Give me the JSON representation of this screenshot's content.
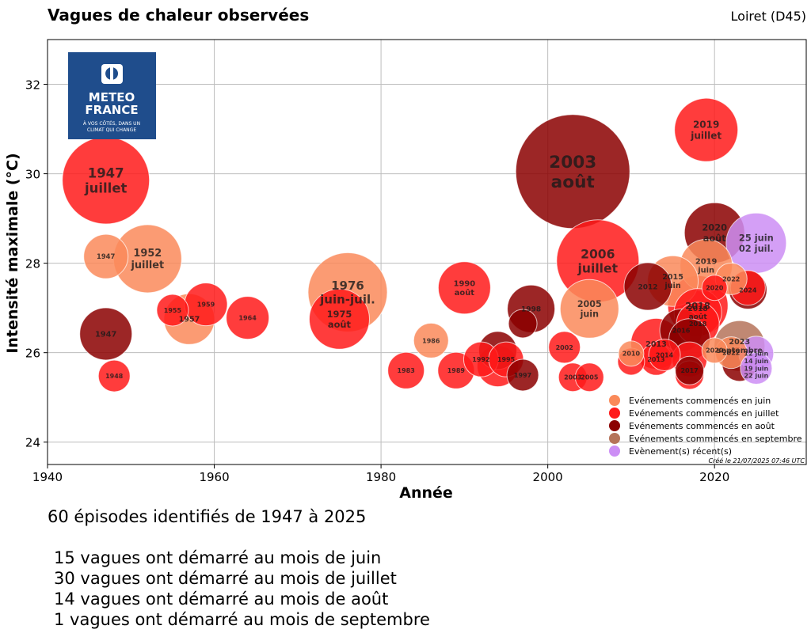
{
  "chart_data": {
    "type": "scatter",
    "title": "Vagues de chaleur observées",
    "subtitle": "Loiret (D45)",
    "xlabel": "Année",
    "ylabel": "Intensité maximale (°C)",
    "xlim": [
      1940,
      2031
    ],
    "ylim": [
      23.5,
      33
    ],
    "xticks": [
      "1940",
      "1960",
      "1980",
      "2000",
      "2020"
    ],
    "yticks": [
      "24",
      "26",
      "28",
      "30",
      "32"
    ],
    "grid": true,
    "legend_position": "bottom-right",
    "credit": "Créé le 21/07/2025 07:46 UTC",
    "logo": {
      "line1": "METEO",
      "line2": "FRANCE",
      "tagline1": "À VOS CÔTÉS, DANS UN",
      "tagline2": "CLIMAT QUI CHANGE"
    },
    "legend": [
      {
        "label": "Evénements commencés en juin",
        "color": "#fa8a5a"
      },
      {
        "label": "Evénements commencés en juillet",
        "color": "#ff1a1a"
      },
      {
        "label": "Evénements commencés en août",
        "color": "#8b0000"
      },
      {
        "label": "Evénements commencés en septembre",
        "color": "#b5735a"
      },
      {
        "label": "Evènement(s) récent(s)",
        "color": "#cc8ef5"
      }
    ],
    "events": [
      {
        "year": 1947,
        "value": 29.85,
        "size": 55,
        "month": "juillet",
        "label": [
          "1947",
          "juillet"
        ]
      },
      {
        "year": 1947,
        "value": 28.15,
        "size": 28,
        "month": "juin",
        "label": [
          "1947"
        ]
      },
      {
        "year": 1952,
        "value": 28.1,
        "size": 43,
        "month": "juin",
        "label": [
          "1952",
          "juillet"
        ]
      },
      {
        "year": 1947,
        "value": 26.42,
        "size": 33,
        "month": "août",
        "label": [
          "1947"
        ]
      },
      {
        "year": 1948,
        "value": 25.48,
        "size": 20,
        "month": "juillet",
        "label": [
          "1948"
        ]
      },
      {
        "year": 1955,
        "value": 26.95,
        "size": 20,
        "month": "juillet",
        "label": [
          "1955"
        ]
      },
      {
        "year": 1957,
        "value": 26.75,
        "size": 32,
        "month": "juin",
        "label": [
          "1957"
        ]
      },
      {
        "year": 1959,
        "value": 27.08,
        "size": 27,
        "month": "juillet",
        "label": [
          "1959"
        ]
      },
      {
        "year": 1964,
        "value": 26.78,
        "size": 27,
        "month": "juillet",
        "label": [
          "1964"
        ]
      },
      {
        "year": 1975,
        "value": 26.75,
        "size": 38,
        "month": "juillet",
        "label": [
          "1975",
          "août"
        ]
      },
      {
        "year": 1976,
        "value": 27.35,
        "size": 50,
        "month": "juin",
        "label": [
          "1976",
          "juin-juil."
        ]
      },
      {
        "year": 1983,
        "value": 25.6,
        "size": 23,
        "month": "juillet",
        "label": [
          "1983"
        ]
      },
      {
        "year": 1986,
        "value": 26.27,
        "size": 22,
        "month": "juin",
        "label": [
          "1986"
        ]
      },
      {
        "year": 1989,
        "value": 25.6,
        "size": 23,
        "month": "juillet",
        "label": [
          "1989"
        ]
      },
      {
        "year": 1990,
        "value": 27.45,
        "size": 33,
        "month": "juillet",
        "label": [
          "1990",
          "août"
        ]
      },
      {
        "year": 1992,
        "value": 25.85,
        "size": 22,
        "month": "juillet",
        "label": [
          "1992"
        ]
      },
      {
        "year": 1994,
        "value": 26.05,
        "size": 24,
        "month": "août",
        "label": [
          ""
        ]
      },
      {
        "year": 1994,
        "value": 25.7,
        "size": 26,
        "month": "juillet",
        "label": [
          ""
        ]
      },
      {
        "year": 1995,
        "value": 25.85,
        "size": 22,
        "month": "juillet",
        "label": [
          "1995"
        ]
      },
      {
        "year": 1997,
        "value": 25.5,
        "size": 20,
        "month": "août",
        "label": [
          "1997"
        ]
      },
      {
        "year": 1997,
        "value": 26.65,
        "size": 18,
        "month": "août",
        "label": [
          ""
        ]
      },
      {
        "year": 1998,
        "value": 26.98,
        "size": 30,
        "month": "août",
        "label": [
          "1998"
        ]
      },
      {
        "year": 2002,
        "value": 26.12,
        "size": 20,
        "month": "juillet",
        "label": [
          "2002"
        ]
      },
      {
        "year": 2003,
        "value": 30.05,
        "size": 72,
        "month": "août",
        "label": [
          "2003",
          "août"
        ]
      },
      {
        "year": 2003,
        "value": 25.45,
        "size": 18,
        "month": "juillet",
        "label": [
          "2003"
        ]
      },
      {
        "year": 2005,
        "value": 25.45,
        "size": 18,
        "month": "juillet",
        "label": [
          "2005"
        ]
      },
      {
        "year": 2005,
        "value": 26.98,
        "size": 37,
        "month": "juin",
        "label": [
          "2005",
          "juin"
        ]
      },
      {
        "year": 2006,
        "value": 28.05,
        "size": 52,
        "month": "juillet",
        "label": [
          "2006",
          "juillet"
        ]
      },
      {
        "year": 2010,
        "value": 25.8,
        "size": 17,
        "month": "juillet",
        "label": [
          ""
        ]
      },
      {
        "year": 2010,
        "value": 25.98,
        "size": 16,
        "month": "juin",
        "label": [
          "2010"
        ]
      },
      {
        "year": 2012,
        "value": 27.48,
        "size": 30,
        "month": "août",
        "label": [
          "2012"
        ]
      },
      {
        "year": 2013,
        "value": 26.2,
        "size": 32,
        "month": "juillet",
        "label": [
          "2013"
        ]
      },
      {
        "year": 2013,
        "value": 25.85,
        "size": 20,
        "month": "juillet",
        "label": [
          "2013"
        ]
      },
      {
        "year": 2014,
        "value": 25.95,
        "size": 20,
        "month": "juillet",
        "label": [
          "2014"
        ]
      },
      {
        "year": 2015,
        "value": 27.6,
        "size": 32,
        "month": "juin",
        "label": [
          "2015",
          "juin"
        ]
      },
      {
        "year": 2016,
        "value": 26.5,
        "size": 27,
        "month": "août",
        "label": [
          "2016"
        ]
      },
      {
        "year": 2017,
        "value": 26.3,
        "size": 26,
        "month": "août",
        "label": [
          ""
        ]
      },
      {
        "year": 2017,
        "value": 25.85,
        "size": 22,
        "month": "juillet",
        "label": [
          ""
        ]
      },
      {
        "year": 2017,
        "value": 25.5,
        "size": 18,
        "month": "juillet",
        "label": [
          ""
        ]
      },
      {
        "year": 2017,
        "value": 25.6,
        "size": 18,
        "month": "août",
        "label": [
          "2017"
        ]
      },
      {
        "year": 2018,
        "value": 27.05,
        "size": 38,
        "month": "juillet",
        "label": [
          "2018"
        ]
      },
      {
        "year": 2018,
        "value": 26.9,
        "size": 30,
        "month": "juillet",
        "label": [
          "2018",
          "août"
        ]
      },
      {
        "year": 2018,
        "value": 26.65,
        "size": 27,
        "month": "juillet",
        "label": [
          "2018"
        ]
      },
      {
        "year": 2019,
        "value": 27.95,
        "size": 33,
        "month": "juin",
        "label": [
          "2019",
          "juin"
        ]
      },
      {
        "year": 2019,
        "value": 30.98,
        "size": 40,
        "month": "juillet",
        "label": [
          "2019",
          "juillet"
        ]
      },
      {
        "year": 2020,
        "value": 28.68,
        "size": 38,
        "month": "août",
        "label": [
          "2020",
          "août"
        ]
      },
      {
        "year": 2020,
        "value": 27.45,
        "size": 16,
        "month": "juillet",
        "label": [
          "2020"
        ]
      },
      {
        "year": 2020,
        "value": 26.05,
        "size": 16,
        "month": "juin",
        "label": [
          "2020"
        ]
      },
      {
        "year": 2022,
        "value": 27.65,
        "size": 20,
        "month": "juin",
        "label": [
          "2022"
        ]
      },
      {
        "year": 2022,
        "value": 26.0,
        "size": 20,
        "month": "juin",
        "label": [
          "2022"
        ]
      },
      {
        "year": 2023,
        "value": 25.75,
        "size": 22,
        "month": "août",
        "label": [
          ""
        ]
      },
      {
        "year": 2023,
        "value": 26.15,
        "size": 32,
        "month": "septembre",
        "label": [
          "2023",
          "septembre"
        ]
      },
      {
        "year": 2024,
        "value": 27.4,
        "size": 24,
        "month": "août",
        "label": [
          "2024"
        ]
      },
      {
        "year": 2024,
        "value": 27.45,
        "size": 22,
        "month": "juillet",
        "label": [
          ""
        ]
      },
      {
        "year": 2025,
        "value": 28.45,
        "size": 38,
        "month": "récent",
        "label": [
          "25 juin",
          "02 juil."
        ]
      },
      {
        "year": 2025,
        "value": 25.98,
        "size": 22,
        "month": "récent",
        "label": [
          "12 juin"
        ]
      },
      {
        "year": 2025,
        "value": 25.65,
        "size": 20,
        "month": "récent",
        "label": [
          "14 juin",
          "19 juin",
          "22 juin"
        ]
      }
    ]
  },
  "summary": {
    "total": "60 épisodes identifiés de 1947 à 2025",
    "lines": [
      "15 vagues ont démarré au mois de juin",
      "30 vagues ont démarré au mois de juillet",
      "14 vagues ont démarré au mois de août",
      "1 vagues ont démarré au mois de septembre"
    ]
  }
}
